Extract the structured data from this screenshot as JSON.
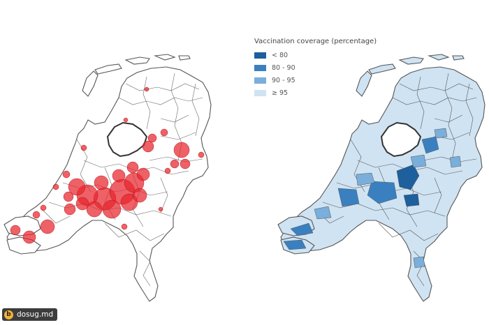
{
  "legend": {
    "title": "Vaccination coverage (percentage)",
    "items": [
      {
        "label": "< 80",
        "color": "#1e5f9e"
      },
      {
        "label": "80 - 90",
        "color": "#3a80c0"
      },
      {
        "label": "90 - 95",
        "color": "#7aaedb"
      },
      {
        "label": "≥ 95",
        "color": "#cfe3f2"
      }
    ]
  },
  "left_map": {
    "fill": "#ffffff",
    "stroke": "#555555",
    "bubble_color": "#e8242c"
  },
  "right_map": {
    "fill": "#cfe3f2",
    "stroke": "#555555"
  },
  "watermark": {
    "text": "dosug.md",
    "icon": "b"
  }
}
